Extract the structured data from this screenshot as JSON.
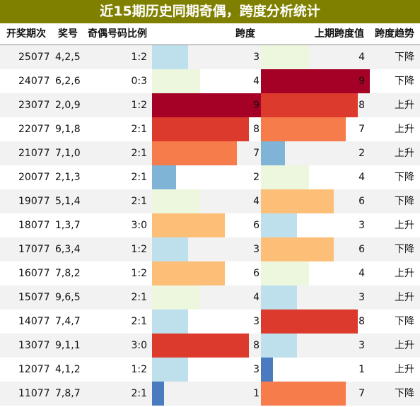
{
  "title": "近15期历史同期奇偶，跨度分析统计",
  "headers": {
    "period": "开奖期次",
    "numbers": "奖号",
    "ratio": "奇偶号码比例",
    "span": "跨度",
    "prev_span": "上期跨度值",
    "trend": "跨度趋势"
  },
  "colors": {
    "1": "#4a7bbf",
    "2": "#7fb4d6",
    "3": "#bde0ec",
    "4": "#edf7dd",
    "6": "#fdbf78",
    "7": "#f67c4c",
    "8": "#dc3a2c",
    "9": "#a50026"
  },
  "chart_data": {
    "type": "table",
    "span_max": 9,
    "columns": [
      "开奖期次",
      "奖号",
      "奇偶号码比例",
      "跨度",
      "上期跨度值",
      "跨度趋势"
    ],
    "rows": [
      {
        "period": "25077",
        "numbers": "4,2,5",
        "ratio": "1:2",
        "span": 3,
        "prev_span": 4,
        "trend": "下降"
      },
      {
        "period": "24077",
        "numbers": "6,2,6",
        "ratio": "0:3",
        "span": 4,
        "prev_span": 9,
        "trend": "下降"
      },
      {
        "period": "23077",
        "numbers": "2,0,9",
        "ratio": "1:2",
        "span": 9,
        "prev_span": 8,
        "trend": "上升"
      },
      {
        "period": "22077",
        "numbers": "9,1,8",
        "ratio": "2:1",
        "span": 8,
        "prev_span": 7,
        "trend": "上升"
      },
      {
        "period": "21077",
        "numbers": "7,1,0",
        "ratio": "2:1",
        "span": 7,
        "prev_span": 2,
        "trend": "上升"
      },
      {
        "period": "20077",
        "numbers": "2,1,3",
        "ratio": "2:1",
        "span": 2,
        "prev_span": 4,
        "trend": "下降"
      },
      {
        "period": "19077",
        "numbers": "5,1,4",
        "ratio": "2:1",
        "span": 4,
        "prev_span": 6,
        "trend": "下降"
      },
      {
        "period": "18077",
        "numbers": "1,3,7",
        "ratio": "3:0",
        "span": 6,
        "prev_span": 3,
        "trend": "上升"
      },
      {
        "period": "17077",
        "numbers": "6,3,4",
        "ratio": "1:2",
        "span": 3,
        "prev_span": 6,
        "trend": "下降"
      },
      {
        "period": "16077",
        "numbers": "7,8,2",
        "ratio": "1:2",
        "span": 6,
        "prev_span": 4,
        "trend": "上升"
      },
      {
        "period": "15077",
        "numbers": "9,6,5",
        "ratio": "2:1",
        "span": 4,
        "prev_span": 3,
        "trend": "上升"
      },
      {
        "period": "14077",
        "numbers": "7,4,7",
        "ratio": "2:1",
        "span": 3,
        "prev_span": 8,
        "trend": "下降"
      },
      {
        "period": "13077",
        "numbers": "9,1,1",
        "ratio": "3:0",
        "span": 8,
        "prev_span": 3,
        "trend": "上升"
      },
      {
        "period": "12077",
        "numbers": "4,1,2",
        "ratio": "1:2",
        "span": 3,
        "prev_span": 1,
        "trend": "上升"
      },
      {
        "period": "11077",
        "numbers": "7,8,7",
        "ratio": "2:1",
        "span": 1,
        "prev_span": 7,
        "trend": "下降"
      }
    ]
  }
}
